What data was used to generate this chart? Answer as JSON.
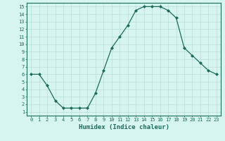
{
  "title": "",
  "xlabel": "Humidex (Indice chaleur)",
  "ylabel": "",
  "x_values": [
    0,
    1,
    2,
    3,
    4,
    5,
    6,
    7,
    8,
    9,
    10,
    11,
    12,
    13,
    14,
    15,
    16,
    17,
    18,
    19,
    20,
    21,
    22,
    23
  ],
  "y_values": [
    6,
    6,
    4.5,
    2.5,
    1.5,
    1.5,
    1.5,
    1.5,
    3.5,
    6.5,
    9.5,
    11,
    12.5,
    14.5,
    15,
    15,
    15,
    14.5,
    13.5,
    9.5,
    8.5,
    7.5,
    6.5,
    6
  ],
  "line_color": "#1a6b5a",
  "marker": "D",
  "marker_size": 2.0,
  "bg_color": "#d6f5f0",
  "grid_color": "#b8ddd8",
  "xlim": [
    -0.5,
    23.5
  ],
  "ylim": [
    0.5,
    15.5
  ],
  "yticks": [
    1,
    2,
    3,
    4,
    5,
    6,
    7,
    8,
    9,
    10,
    11,
    12,
    13,
    14,
    15
  ],
  "xticks": [
    0,
    1,
    2,
    3,
    4,
    5,
    6,
    7,
    8,
    9,
    10,
    11,
    12,
    13,
    14,
    15,
    16,
    17,
    18,
    19,
    20,
    21,
    22,
    23
  ],
  "tick_label_fontsize": 5.0,
  "xlabel_fontsize": 6.5,
  "axis_color": "#1a6b5a",
  "linewidth": 0.9
}
